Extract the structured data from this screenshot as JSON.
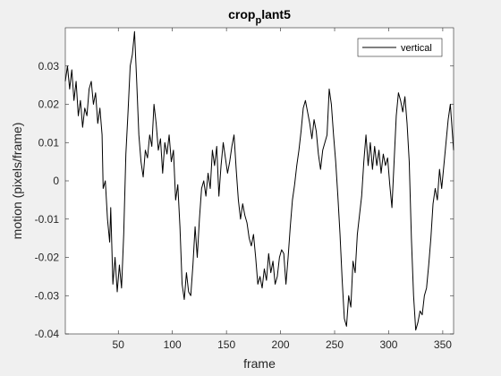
{
  "chart_data": {
    "type": "line",
    "title_main": "crop",
    "title_sub": "p",
    "title_rest": "lant5",
    "xlabel": "frame",
    "ylabel": "motion (pixels/frame)",
    "xlim": [
      1,
      360
    ],
    "ylim": [
      -0.04,
      0.04
    ],
    "xticks": [
      50,
      100,
      150,
      200,
      250,
      300,
      350
    ],
    "yticks": [
      -0.04,
      -0.03,
      -0.02,
      -0.01,
      0,
      0.01,
      0.02,
      0.03
    ],
    "ytick_labels": [
      "-0.04",
      "-0.03",
      "-0.02",
      "-0.01",
      "0",
      "0.01",
      "0.02",
      "0.03"
    ],
    "grid": false,
    "legend_position": "top-right",
    "series": [
      {
        "name": "vertical",
        "color": "#000000",
        "points": [
          [
            1,
            0.026
          ],
          [
            3,
            0.03
          ],
          [
            5,
            0.024
          ],
          [
            7,
            0.029
          ],
          [
            9,
            0.021
          ],
          [
            11,
            0.026
          ],
          [
            13,
            0.017
          ],
          [
            15,
            0.021
          ],
          [
            17,
            0.014
          ],
          [
            19,
            0.019
          ],
          [
            21,
            0.017
          ],
          [
            23,
            0.024
          ],
          [
            25,
            0.026
          ],
          [
            27,
            0.02
          ],
          [
            29,
            0.023
          ],
          [
            31,
            0.015
          ],
          [
            33,
            0.019
          ],
          [
            35,
            0.012
          ],
          [
            36,
            -0.002
          ],
          [
            38,
            0.0
          ],
          [
            40,
            -0.01
          ],
          [
            42,
            -0.016
          ],
          [
            43,
            -0.007
          ],
          [
            45,
            -0.027
          ],
          [
            47,
            -0.02
          ],
          [
            49,
            -0.029
          ],
          [
            51,
            -0.022
          ],
          [
            53,
            -0.028
          ],
          [
            55,
            -0.014
          ],
          [
            57,
            0.007
          ],
          [
            59,
            0.018
          ],
          [
            61,
            0.03
          ],
          [
            63,
            0.033
          ],
          [
            65,
            0.039
          ],
          [
            67,
            0.026
          ],
          [
            69,
            0.012
          ],
          [
            71,
            0.005
          ],
          [
            73,
            0.001
          ],
          [
            75,
            0.008
          ],
          [
            77,
            0.006
          ],
          [
            79,
            0.012
          ],
          [
            81,
            0.009
          ],
          [
            83,
            0.02
          ],
          [
            85,
            0.015
          ],
          [
            87,
            0.008
          ],
          [
            89,
            0.011
          ],
          [
            91,
            0.002
          ],
          [
            93,
            0.01
          ],
          [
            95,
            0.007
          ],
          [
            97,
            0.012
          ],
          [
            99,
            0.005
          ],
          [
            101,
            0.008
          ],
          [
            103,
            -0.005
          ],
          [
            105,
            -0.001
          ],
          [
            107,
            -0.012
          ],
          [
            109,
            -0.027
          ],
          [
            111,
            -0.031
          ],
          [
            113,
            -0.024
          ],
          [
            115,
            -0.029
          ],
          [
            117,
            -0.03
          ],
          [
            119,
            -0.022
          ],
          [
            121,
            -0.012
          ],
          [
            123,
            -0.02
          ],
          [
            125,
            -0.01
          ],
          [
            127,
            -0.002
          ],
          [
            129,
            0.0
          ],
          [
            131,
            -0.004
          ],
          [
            133,
            0.002
          ],
          [
            135,
            -0.002
          ],
          [
            137,
            0.008
          ],
          [
            139,
            0.004
          ],
          [
            141,
            0.009
          ],
          [
            143,
            -0.004
          ],
          [
            145,
            0.004
          ],
          [
            147,
            0.01
          ],
          [
            149,
            0.006
          ],
          [
            151,
            0.002
          ],
          [
            153,
            0.005
          ],
          [
            155,
            0.009
          ],
          [
            157,
            0.012
          ],
          [
            159,
            0.003
          ],
          [
            161,
            -0.005
          ],
          [
            163,
            -0.01
          ],
          [
            165,
            -0.006
          ],
          [
            167,
            -0.009
          ],
          [
            169,
            -0.011
          ],
          [
            171,
            -0.015
          ],
          [
            173,
            -0.017
          ],
          [
            175,
            -0.014
          ],
          [
            177,
            -0.02
          ],
          [
            179,
            -0.027
          ],
          [
            181,
            -0.025
          ],
          [
            183,
            -0.028
          ],
          [
            185,
            -0.023
          ],
          [
            187,
            -0.026
          ],
          [
            189,
            -0.019
          ],
          [
            191,
            -0.024
          ],
          [
            193,
            -0.021
          ],
          [
            195,
            -0.027
          ],
          [
            197,
            -0.025
          ],
          [
            199,
            -0.02
          ],
          [
            201,
            -0.018
          ],
          [
            203,
            -0.019
          ],
          [
            205,
            -0.027
          ],
          [
            207,
            -0.02
          ],
          [
            209,
            -0.012
          ],
          [
            211,
            -0.005
          ],
          [
            213,
            -0.001
          ],
          [
            215,
            0.004
          ],
          [
            217,
            0.008
          ],
          [
            219,
            0.013
          ],
          [
            221,
            0.019
          ],
          [
            223,
            0.021
          ],
          [
            225,
            0.018
          ],
          [
            227,
            0.015
          ],
          [
            229,
            0.011
          ],
          [
            231,
            0.016
          ],
          [
            233,
            0.013
          ],
          [
            235,
            0.007
          ],
          [
            237,
            0.003
          ],
          [
            239,
            0.008
          ],
          [
            241,
            0.01
          ],
          [
            243,
            0.012
          ],
          [
            245,
            0.024
          ],
          [
            247,
            0.02
          ],
          [
            249,
            0.012
          ],
          [
            251,
            0.005
          ],
          [
            253,
            -0.004
          ],
          [
            255,
            -0.014
          ],
          [
            257,
            -0.026
          ],
          [
            259,
            -0.036
          ],
          [
            261,
            -0.038
          ],
          [
            263,
            -0.03
          ],
          [
            265,
            -0.033
          ],
          [
            267,
            -0.021
          ],
          [
            269,
            -0.024
          ],
          [
            271,
            -0.014
          ],
          [
            273,
            -0.009
          ],
          [
            275,
            -0.004
          ],
          [
            277,
            0.005
          ],
          [
            279,
            0.012
          ],
          [
            281,
            0.004
          ],
          [
            283,
            0.01
          ],
          [
            285,
            0.003
          ],
          [
            287,
            0.009
          ],
          [
            289,
            0.004
          ],
          [
            291,
            0.008
          ],
          [
            293,
            0.002
          ],
          [
            295,
            0.007
          ],
          [
            297,
            0.004
          ],
          [
            299,
            0.006
          ],
          [
            301,
            -0.001
          ],
          [
            303,
            -0.007
          ],
          [
            305,
            0.005
          ],
          [
            307,
            0.017
          ],
          [
            309,
            0.023
          ],
          [
            311,
            0.021
          ],
          [
            313,
            0.018
          ],
          [
            315,
            0.022
          ],
          [
            317,
            0.015
          ],
          [
            319,
            0.005
          ],
          [
            321,
            -0.015
          ],
          [
            323,
            -0.03
          ],
          [
            325,
            -0.039
          ],
          [
            327,
            -0.037
          ],
          [
            329,
            -0.034
          ],
          [
            331,
            -0.035
          ],
          [
            333,
            -0.03
          ],
          [
            335,
            -0.028
          ],
          [
            337,
            -0.022
          ],
          [
            339,
            -0.015
          ],
          [
            341,
            -0.006
          ],
          [
            343,
            -0.002
          ],
          [
            345,
            -0.005
          ],
          [
            347,
            0.003
          ],
          [
            349,
            -0.002
          ],
          [
            351,
            0.004
          ],
          [
            353,
            0.01
          ],
          [
            355,
            0.016
          ],
          [
            357,
            0.02
          ],
          [
            359,
            0.012
          ],
          [
            360,
            0.008
          ]
        ]
      }
    ]
  }
}
